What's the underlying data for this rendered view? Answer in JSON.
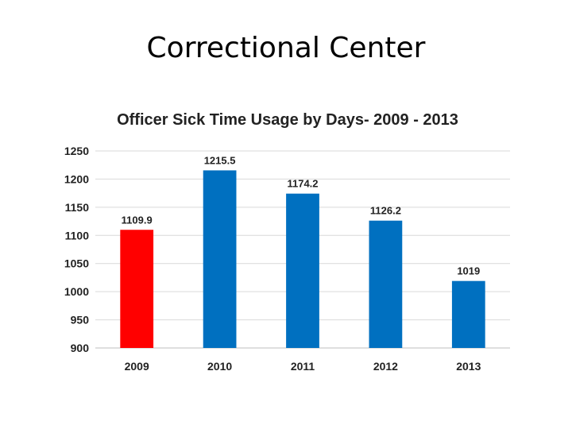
{
  "slide_title": "Correctional Center",
  "chart_data": {
    "type": "bar",
    "title": "Officer Sick Time Usage by Days- 2009 - 2013",
    "xlabel": "",
    "ylabel": "",
    "categories": [
      "2009",
      "2010",
      "2011",
      "2012",
      "2013"
    ],
    "values": [
      1109.9,
      1215.5,
      1174.2,
      1126.2,
      1019
    ],
    "data_labels": [
      "1109.9",
      "1215.5",
      "1174.2",
      "1126.2",
      "1019"
    ],
    "bar_colors": [
      "#ff0000",
      "#0070c0",
      "#0070c0",
      "#0070c0",
      "#0070c0"
    ],
    "ylim": [
      900,
      1250
    ],
    "yticks": [
      900,
      950,
      1000,
      1050,
      1100,
      1150,
      1200,
      1250
    ],
    "grid": true,
    "legend": "none"
  }
}
